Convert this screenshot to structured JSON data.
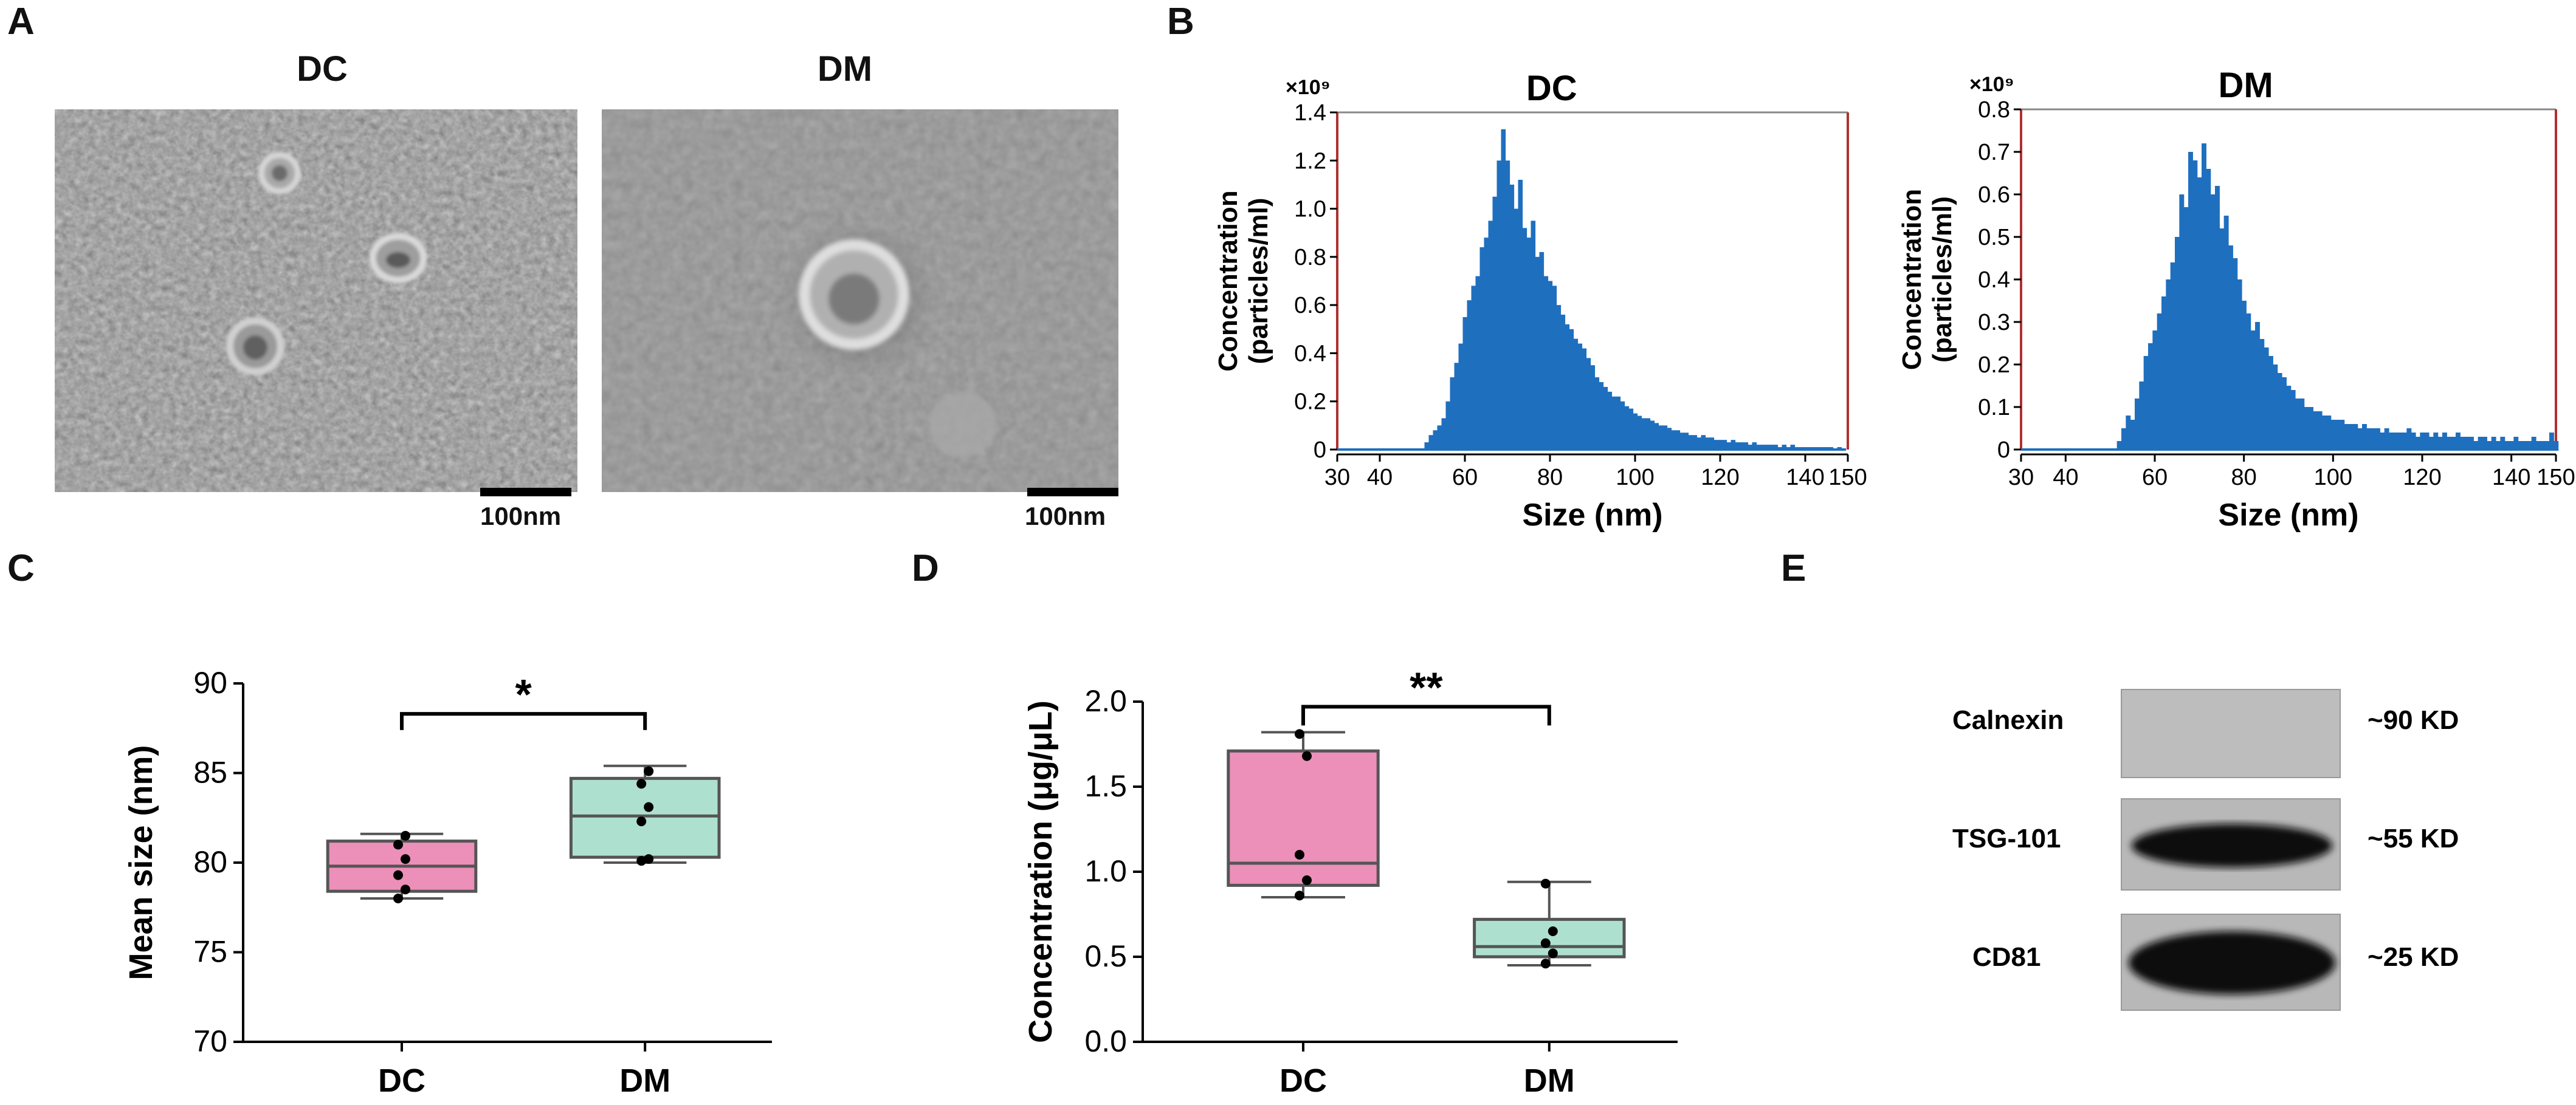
{
  "panels": {
    "a": {
      "letter": "A",
      "dc_title": "DC",
      "dm_title": "DM",
      "dc_scale": "100nm",
      "dm_scale": "100nm"
    },
    "b": {
      "letter": "B"
    },
    "c": {
      "letter": "C"
    },
    "d": {
      "letter": "D"
    },
    "e": {
      "letter": "E"
    }
  },
  "chart_data": [
    {
      "type": "bar",
      "id": "nta_dc",
      "title": "DC",
      "multiplier": "×10⁹",
      "xlabel": "Size (nm)",
      "ylabel_line1": "Concentration",
      "ylabel_line2": "(particles/ml)",
      "xlim": [
        30,
        150
      ],
      "ylim": [
        0,
        1.4
      ],
      "xticks": [
        30,
        40,
        60,
        80,
        100,
        120,
        140,
        150
      ],
      "yticks": [
        0,
        0.2,
        0.4,
        0.6,
        0.8,
        1.0,
        1.2,
        1.4
      ],
      "ytick_labels": [
        "0",
        "0.2",
        "0.4",
        "0.6",
        "0.8",
        "1.0",
        "1.2",
        "1.4"
      ],
      "bin_width": 1,
      "x": [
        51,
        52,
        53,
        54,
        55,
        56,
        57,
        58,
        59,
        60,
        61,
        62,
        63,
        64,
        65,
        66,
        67,
        68,
        69,
        70,
        71,
        72,
        73,
        74,
        75,
        76,
        77,
        78,
        79,
        80,
        81,
        82,
        83,
        84,
        85,
        86,
        87,
        88,
        89,
        90,
        91,
        92,
        93,
        94,
        95,
        96,
        97,
        98,
        99,
        100,
        101,
        102,
        103,
        104,
        105,
        106,
        107,
        108,
        109,
        110,
        111,
        112,
        113,
        114,
        115,
        116,
        117,
        118,
        119,
        120,
        121,
        122,
        123,
        124,
        125,
        126,
        127,
        128,
        129,
        130,
        131,
        132,
        133,
        134,
        135,
        136,
        137,
        138,
        139,
        140,
        141,
        142,
        143,
        144,
        145,
        146,
        147,
        148,
        149
      ],
      "values": [
        0.03,
        0.06,
        0.08,
        0.1,
        0.13,
        0.2,
        0.3,
        0.36,
        0.44,
        0.55,
        0.62,
        0.68,
        0.72,
        0.84,
        0.88,
        0.95,
        1.05,
        1.2,
        1.33,
        1.2,
        1.1,
        1.0,
        1.12,
        0.92,
        0.88,
        0.95,
        0.8,
        0.82,
        0.72,
        0.7,
        0.68,
        0.6,
        0.56,
        0.52,
        0.5,
        0.46,
        0.44,
        0.42,
        0.38,
        0.35,
        0.3,
        0.28,
        0.26,
        0.24,
        0.22,
        0.22,
        0.2,
        0.18,
        0.17,
        0.15,
        0.14,
        0.13,
        0.13,
        0.12,
        0.11,
        0.1,
        0.1,
        0.09,
        0.08,
        0.08,
        0.07,
        0.07,
        0.06,
        0.06,
        0.05,
        0.06,
        0.05,
        0.05,
        0.04,
        0.04,
        0.04,
        0.03,
        0.04,
        0.03,
        0.03,
        0.03,
        0.02,
        0.03,
        0.02,
        0.02,
        0.02,
        0.02,
        0.02,
        0.01,
        0.02,
        0.01,
        0.02,
        0.01,
        0.01,
        0.01,
        0.01,
        0.01,
        0.01,
        0.01,
        0.01,
        0.01,
        0.005,
        0.01,
        0.005
      ],
      "color": "#1f6fbf"
    },
    {
      "type": "bar",
      "id": "nta_dm",
      "title": "DM",
      "multiplier": "×10⁹",
      "xlabel": "Size (nm)",
      "ylabel_line1": "Concentration",
      "ylabel_line2": "(particles/ml)",
      "xlim": [
        30,
        150
      ],
      "ylim": [
        0,
        0.8
      ],
      "xticks": [
        30,
        40,
        60,
        80,
        100,
        120,
        140,
        150
      ],
      "yticks": [
        0,
        0.1,
        0.2,
        0.3,
        0.4,
        0.5,
        0.6,
        0.7,
        0.8
      ],
      "ytick_labels": [
        "0",
        "0.1",
        "0.2",
        "0.3",
        "0.4",
        "0.5",
        "0.6",
        "0.7",
        "0.8"
      ],
      "bin_width": 1,
      "x": [
        52,
        53,
        54,
        55,
        56,
        57,
        58,
        59,
        60,
        61,
        62,
        63,
        64,
        65,
        66,
        67,
        68,
        69,
        70,
        71,
        72,
        73,
        74,
        75,
        76,
        77,
        78,
        79,
        80,
        81,
        82,
        83,
        84,
        85,
        86,
        87,
        88,
        89,
        90,
        91,
        92,
        93,
        94,
        95,
        96,
        97,
        98,
        99,
        100,
        101,
        102,
        103,
        104,
        105,
        106,
        107,
        108,
        109,
        110,
        111,
        112,
        113,
        114,
        115,
        116,
        117,
        118,
        119,
        120,
        121,
        122,
        123,
        124,
        125,
        126,
        127,
        128,
        129,
        130,
        131,
        132,
        133,
        134,
        135,
        136,
        137,
        138,
        139,
        140,
        141,
        142,
        143,
        144,
        145,
        146,
        147,
        148,
        149,
        150
      ],
      "values": [
        0.02,
        0.05,
        0.08,
        0.07,
        0.12,
        0.16,
        0.22,
        0.25,
        0.28,
        0.32,
        0.36,
        0.4,
        0.44,
        0.5,
        0.6,
        0.57,
        0.7,
        0.68,
        0.64,
        0.72,
        0.66,
        0.6,
        0.62,
        0.52,
        0.55,
        0.48,
        0.45,
        0.4,
        0.35,
        0.32,
        0.28,
        0.3,
        0.26,
        0.24,
        0.22,
        0.2,
        0.18,
        0.17,
        0.15,
        0.14,
        0.12,
        0.12,
        0.1,
        0.1,
        0.09,
        0.09,
        0.08,
        0.08,
        0.07,
        0.07,
        0.07,
        0.06,
        0.06,
        0.06,
        0.05,
        0.06,
        0.05,
        0.05,
        0.05,
        0.04,
        0.05,
        0.04,
        0.04,
        0.04,
        0.04,
        0.05,
        0.04,
        0.03,
        0.04,
        0.04,
        0.03,
        0.04,
        0.03,
        0.04,
        0.03,
        0.03,
        0.04,
        0.03,
        0.03,
        0.03,
        0.02,
        0.03,
        0.03,
        0.02,
        0.03,
        0.02,
        0.03,
        0.02,
        0.02,
        0.03,
        0.02,
        0.02,
        0.02,
        0.03,
        0.02,
        0.02,
        0.02,
        0.04,
        0.02
      ],
      "color": "#1f6fbf"
    },
    {
      "type": "box",
      "id": "mean_size",
      "ylabel": "Mean size (nm)",
      "ylim": [
        70,
        90
      ],
      "yticks": [
        70,
        75,
        80,
        85,
        90
      ],
      "categories": [
        "DC",
        "DM"
      ],
      "boxes": [
        {
          "name": "DC",
          "min": 78.0,
          "q1": 78.4,
          "median": 79.8,
          "q3": 81.2,
          "max": 81.6,
          "points": [
            78.0,
            78.5,
            79.3,
            80.2,
            81.0,
            81.5
          ],
          "color": "#ec8fb9"
        },
        {
          "name": "DM",
          "min": 80.0,
          "q1": 80.3,
          "median": 82.6,
          "q3": 84.7,
          "max": 85.4,
          "points": [
            80.1,
            80.2,
            82.3,
            83.1,
            84.4,
            85.1
          ],
          "color": "#aee0d0"
        }
      ],
      "significance": "*"
    },
    {
      "type": "box",
      "id": "concentration",
      "ylabel": "Concentration (μg/μL)",
      "ylim": [
        0,
        2.0
      ],
      "yticks": [
        0.0,
        0.5,
        1.0,
        1.5,
        2.0
      ],
      "ytick_labels": [
        "0.0",
        "0.5",
        "1.0",
        "1.5",
        "2.0"
      ],
      "categories": [
        "DC",
        "DM"
      ],
      "boxes": [
        {
          "name": "DC",
          "min": 0.85,
          "q1": 0.92,
          "median": 1.05,
          "q3": 1.71,
          "max": 1.82,
          "points": [
            0.86,
            0.95,
            1.1,
            1.68,
            1.81
          ],
          "color": "#ec8fb9"
        },
        {
          "name": "DM",
          "min": 0.45,
          "q1": 0.5,
          "median": 0.56,
          "q3": 0.72,
          "max": 0.94,
          "points": [
            0.46,
            0.52,
            0.58,
            0.65,
            0.93
          ],
          "color": "#aee0d0"
        }
      ],
      "significance": "**"
    }
  ],
  "western_blot": {
    "rows": [
      {
        "protein": "Calnexin",
        "size": "~90 KD",
        "band": false
      },
      {
        "protein": "TSG-101",
        "size": "~55 KD",
        "band": true
      },
      {
        "protein": "CD81",
        "size": "~25 KD",
        "band": true
      }
    ]
  }
}
